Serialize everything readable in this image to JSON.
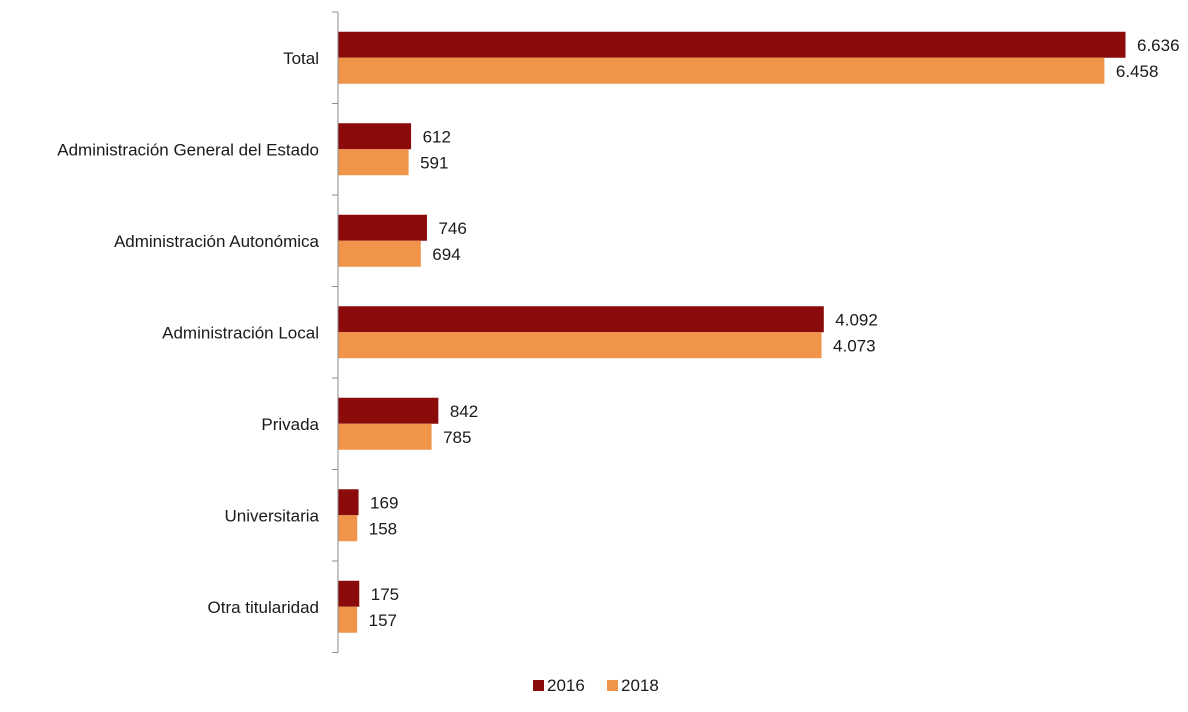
{
  "chart_data": {
    "type": "bar",
    "orientation": "horizontal",
    "categories": [
      "Total",
      "Administración General del Estado",
      "Administración Autonómica",
      "Administración Local",
      "Privada",
      "Universitaria",
      "Otra titularidad"
    ],
    "series": [
      {
        "name": "2016",
        "color": "#8b0a0a",
        "values": [
          6636,
          612,
          746,
          4092,
          842,
          169,
          175
        ],
        "labels": [
          "6.636",
          "612",
          "746",
          "4.092",
          "842",
          "169",
          "175"
        ]
      },
      {
        "name": "2018",
        "color": "#f0944a",
        "values": [
          6458,
          591,
          694,
          4073,
          785,
          158,
          157
        ],
        "labels": [
          "6.458",
          "591",
          "694",
          "4.073",
          "785",
          "158",
          "157"
        ]
      }
    ],
    "title": "",
    "xlabel": "",
    "ylabel": "",
    "xlim": [
      0,
      6636
    ],
    "grid": false,
    "legend_position": "bottom"
  }
}
